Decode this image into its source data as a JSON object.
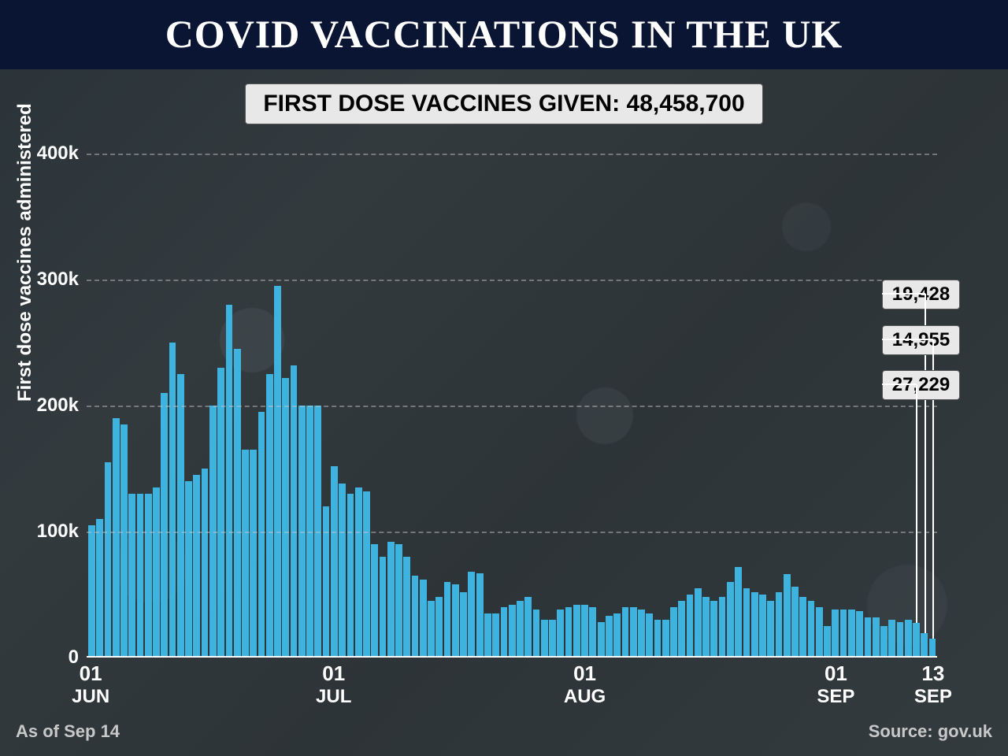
{
  "header": {
    "title": "COVID VACCINATIONS IN THE UK",
    "title_fontsize": 50,
    "title_color": "#ffffff",
    "banner_bg": "#0a1433"
  },
  "subtitle": {
    "text": "FIRST DOSE VACCINES GIVEN: 48,458,700",
    "bg": "#e8e8e8",
    "color": "#000000",
    "fontsize": 30
  },
  "chart": {
    "type": "bar",
    "y_axis_title": "First dose vaccines administered",
    "y_axis_title_fontsize": 24,
    "ylim": [
      0,
      400000
    ],
    "ytick_step": 100000,
    "y_tick_labels": [
      "0",
      "100k",
      "200k",
      "300k",
      "400k"
    ],
    "grid_color": "rgba(200,200,200,0.45)",
    "baseline_color": "#ffffff",
    "bar_color": "#3eb3e0",
    "background_color": "transparent",
    "values": [
      105000,
      110000,
      155000,
      190000,
      185000,
      130000,
      130000,
      130000,
      135000,
      210000,
      250000,
      225000,
      140000,
      145000,
      150000,
      200000,
      230000,
      280000,
      245000,
      165000,
      165000,
      195000,
      225000,
      295000,
      222000,
      232000,
      200000,
      200000,
      200000,
      120000,
      152000,
      138000,
      130000,
      135000,
      132000,
      90000,
      80000,
      92000,
      90000,
      80000,
      65000,
      62000,
      45000,
      48000,
      60000,
      58000,
      52000,
      68000,
      67000,
      35000,
      35000,
      40000,
      42000,
      45000,
      48000,
      38000,
      30000,
      30000,
      38000,
      40000,
      42000,
      42000,
      40000,
      28000,
      33000,
      35000,
      40000,
      40000,
      38000,
      35000,
      30000,
      30000,
      40000,
      45000,
      50000,
      55000,
      48000,
      45000,
      48000,
      60000,
      72000,
      55000,
      52000,
      50000,
      45000,
      52000,
      66000,
      56000,
      48000,
      45000,
      40000,
      25000,
      38000,
      38000,
      38000,
      37000,
      32000,
      32000,
      25000,
      30000,
      28000,
      30000,
      27229,
      19428,
      14955
    ],
    "x_ticks": [
      {
        "index": 0,
        "day": "01",
        "month": "JUN"
      },
      {
        "index": 30,
        "day": "01",
        "month": "JUL"
      },
      {
        "index": 61,
        "day": "01",
        "month": "AUG"
      },
      {
        "index": 92,
        "day": "01",
        "month": "SEP"
      },
      {
        "index": 104,
        "day": "13",
        "month": "SEP"
      }
    ],
    "callouts": [
      {
        "label": "19,428",
        "bar_index": 103,
        "box_top_pct": 25
      },
      {
        "label": "14,955",
        "bar_index": 104,
        "box_top_pct": 34
      },
      {
        "label": "27,229",
        "bar_index": 102,
        "box_top_pct": 43
      }
    ],
    "callout_bg": "#e8e8e8",
    "callout_color": "#000000",
    "callout_fontsize": 24
  },
  "footer": {
    "left": "As of Sep 14",
    "right": "Source: gov.uk",
    "color": "#c8c8c8",
    "fontsize": 22
  }
}
